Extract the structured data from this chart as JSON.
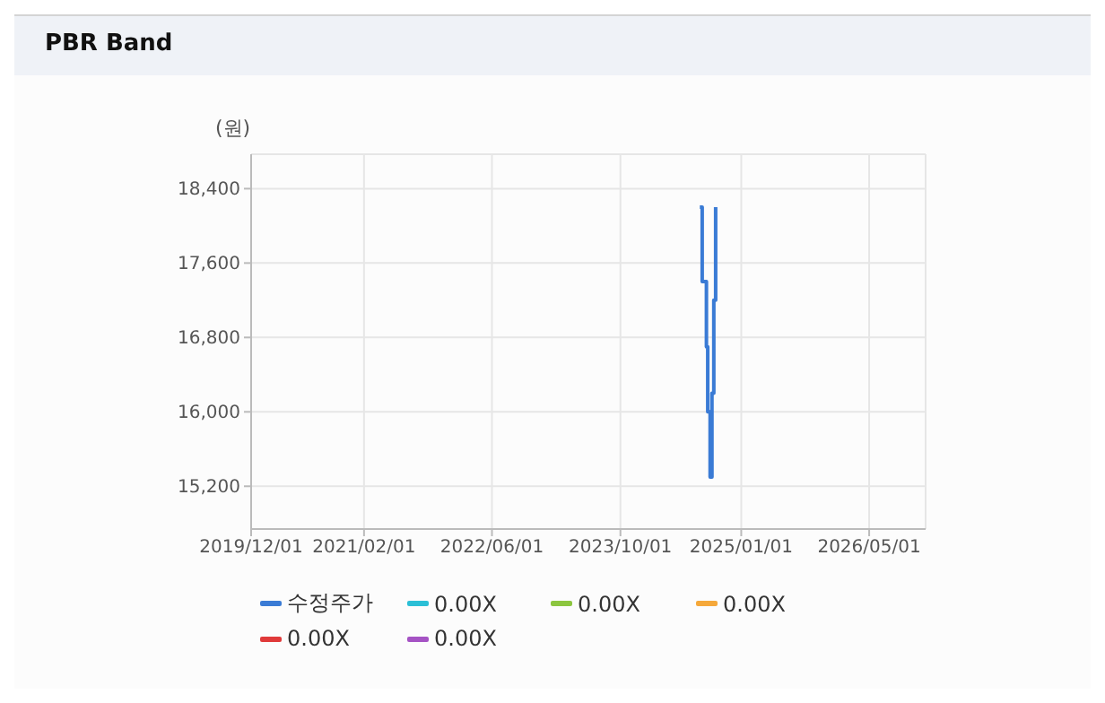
{
  "chart_data": {
    "type": "line",
    "title": "PBR Band",
    "ylabel": "(원)",
    "x": [
      "2024-07-28",
      "2024-08-06",
      "2024-08-06",
      "2024-08-22",
      "2024-08-22",
      "2024-08-27",
      "2024-08-27",
      "2024-09-05",
      "2024-09-05",
      "2024-09-12",
      "2024-09-12",
      "2024-09-19",
      "2024-09-19",
      "2024-09-26",
      "2024-09-26"
    ],
    "series": [
      {
        "name": "수정주가",
        "color": "#3a7bd5",
        "values": [
          18200,
          18200,
          17400,
          17400,
          16700,
          16700,
          16000,
          16000,
          15300,
          15300,
          16200,
          16200,
          17200,
          17200,
          18200
        ]
      },
      {
        "name": "0.00X",
        "color": "#2bbfd6",
        "values": [
          null,
          null,
          null,
          null,
          null,
          null,
          null,
          null,
          null,
          null,
          null,
          null,
          null,
          null,
          null
        ]
      },
      {
        "name": "0.00X",
        "color": "#8cc63f",
        "values": [
          null,
          null,
          null,
          null,
          null,
          null,
          null,
          null,
          null,
          null,
          null,
          null,
          null,
          null,
          null
        ]
      },
      {
        "name": "0.00X",
        "color": "#f5a83a",
        "values": [
          null,
          null,
          null,
          null,
          null,
          null,
          null,
          null,
          null,
          null,
          null,
          null,
          null,
          null,
          null
        ]
      },
      {
        "name": "0.00X",
        "color": "#e03a3a",
        "values": [
          null,
          null,
          null,
          null,
          null,
          null,
          null,
          null,
          null,
          null,
          null,
          null,
          null,
          null,
          null
        ]
      },
      {
        "name": "0.00X",
        "color": "#a553c4",
        "values": [
          null,
          null,
          null,
          null,
          null,
          null,
          null,
          null,
          null,
          null,
          null,
          null,
          null,
          null,
          null
        ]
      }
    ],
    "xlim": [
      "2019-12-01",
      "2026-12-01"
    ],
    "xticks": [
      {
        "value": "2019-12-01",
        "label": "2019/12/01"
      },
      {
        "value": "2021-02-01",
        "label": "2021/02/01"
      },
      {
        "value": "2022-06-01",
        "label": "2022/06/01"
      },
      {
        "value": "2023-10-01",
        "label": "2023/10/01"
      },
      {
        "value": "2025-01-01",
        "label": "2025/01/01"
      },
      {
        "value": "2026-05-01",
        "label": "2026/05/01"
      }
    ],
    "ylim": [
      14740,
      18770
    ],
    "yticks": [
      {
        "value": 15200,
        "label": "15,200"
      },
      {
        "value": 16000,
        "label": "16,000"
      },
      {
        "value": 16800,
        "label": "16,800"
      },
      {
        "value": 17600,
        "label": "17,600"
      },
      {
        "value": 18400,
        "label": "18,400"
      }
    ],
    "grid": true,
    "legend": "bottom",
    "marker": "none",
    "line_style": "solid"
  }
}
